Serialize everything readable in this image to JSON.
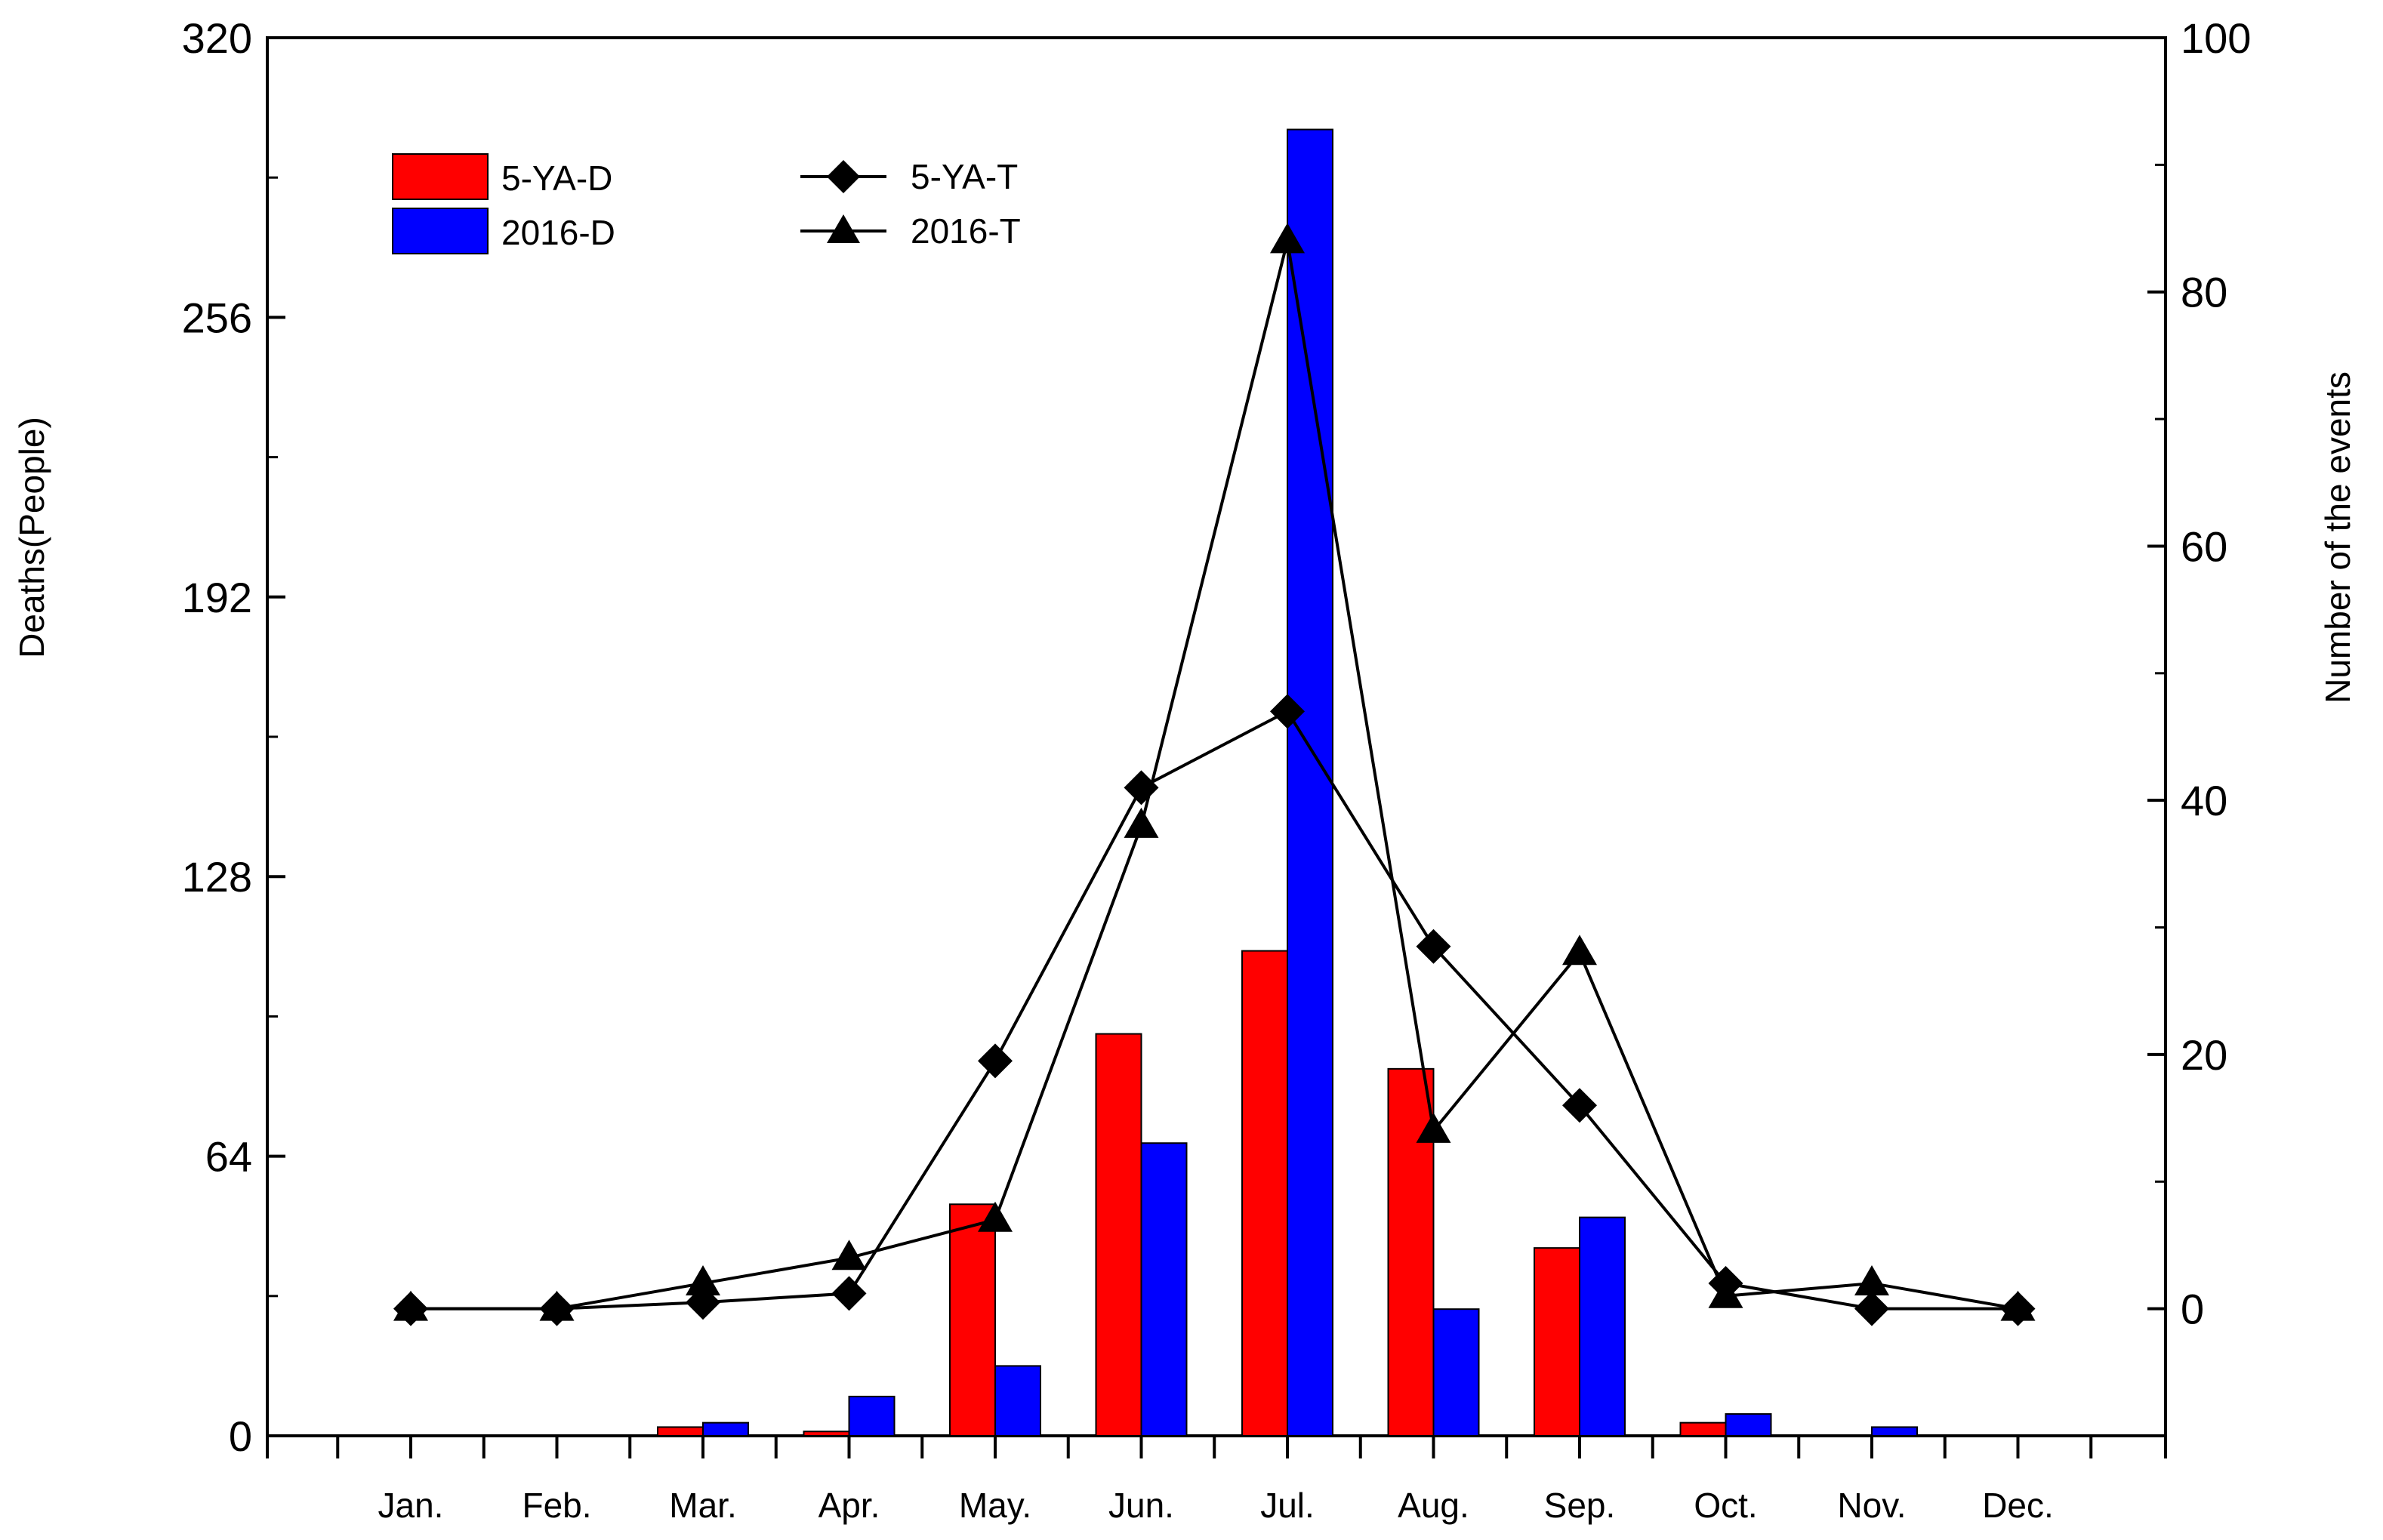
{
  "chart_data": {
    "type": "bar",
    "categories": [
      "Jan.",
      "Feb.",
      "Mar.",
      "Apr.",
      "May.",
      "Jun.",
      "Jul.",
      "Aug.",
      "Sep.",
      "Oct.",
      "Nov.",
      "Dec."
    ],
    "ylabel": "Deaths(People)",
    "y2label": "Number of the events",
    "ylim": [
      0,
      320
    ],
    "y2lim": [
      -10,
      100
    ],
    "yticks": [
      0,
      64,
      128,
      192,
      256,
      320
    ],
    "y2ticks": [
      0,
      20,
      40,
      60,
      80,
      100
    ],
    "series": [
      {
        "name": "5-YA-D",
        "kind": "bar",
        "axis": "left",
        "color": "#ff0000",
        "values": [
          0,
          0,
          2,
          1,
          53,
          92,
          111,
          84,
          43,
          3,
          0,
          0
        ]
      },
      {
        "name": "2016-D",
        "kind": "bar",
        "axis": "left",
        "color": "#0000ff",
        "values": [
          0,
          0,
          3,
          9,
          16,
          67,
          299,
          29,
          50,
          5,
          2,
          0
        ]
      },
      {
        "name": "5-YA-T",
        "kind": "line",
        "axis": "right",
        "marker": "diamond",
        "values": [
          0,
          0,
          0.5,
          1.2,
          19.5,
          41,
          47,
          28.5,
          16,
          2,
          0,
          0
        ]
      },
      {
        "name": "2016-T",
        "kind": "line",
        "axis": "right",
        "marker": "triangle",
        "values": [
          0,
          0,
          2,
          4,
          7,
          38,
          84,
          14,
          28,
          1,
          2,
          0
        ]
      }
    ],
    "legend": "top-left"
  }
}
